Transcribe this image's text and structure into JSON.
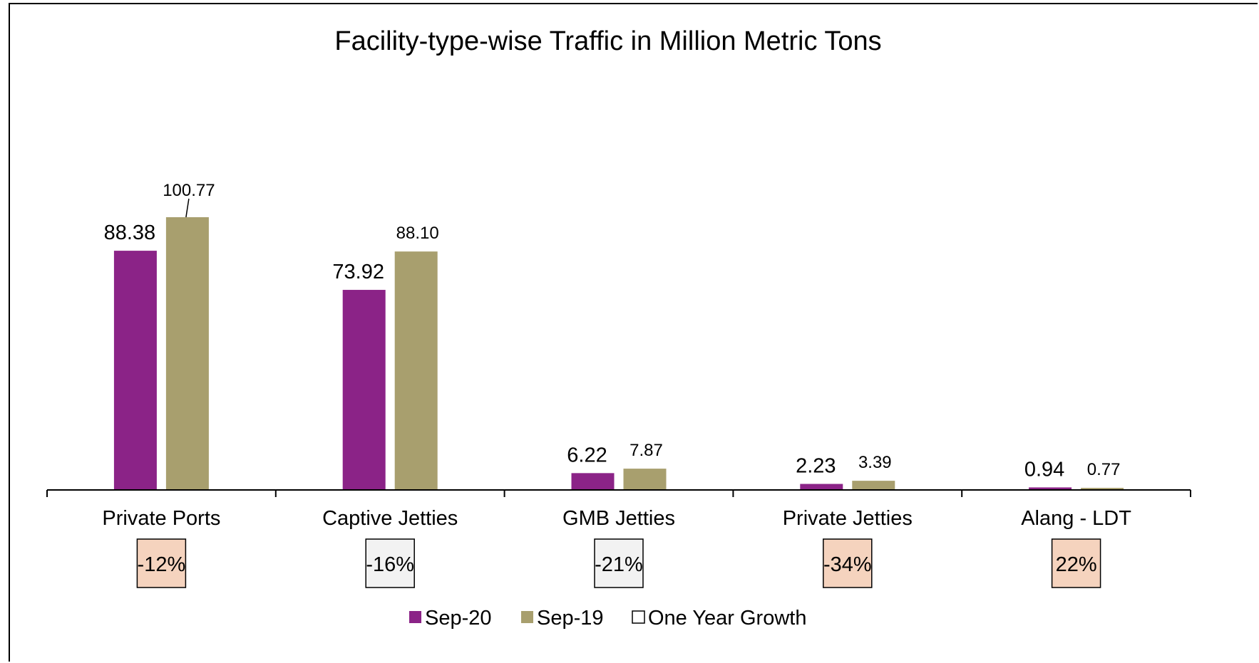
{
  "chart_data": {
    "type": "bar",
    "title": "Facility-type-wise Traffic in Million Metric Tons",
    "categories": [
      "Private Ports",
      "Captive Jetties",
      "GMB Jetties",
      "Private Jetties",
      "Alang - LDT"
    ],
    "series": [
      {
        "name": "Sep-20",
        "color": "#8B2387",
        "values": [
          88.38,
          73.92,
          6.22,
          2.23,
          0.94
        ],
        "labels": [
          "88.38",
          "73.92",
          "6.22",
          "2.23",
          "0.94"
        ]
      },
      {
        "name": "Sep-19",
        "color": "#A89F6E",
        "values": [
          100.77,
          88.1,
          7.87,
          3.39,
          0.77
        ],
        "labels": [
          "100.77",
          "88.10",
          "7.87",
          "3.39",
          "0.77"
        ]
      }
    ],
    "growth": {
      "name": "One Year Growth",
      "labels": [
        "-12%",
        "-16%",
        "-21%",
        "-34%",
        "22%"
      ],
      "colors": [
        "#F5D3BE",
        "#F2F2F2",
        "#F2F2F2",
        "#F5D3BE",
        "#F5D3BE"
      ]
    },
    "ylim": [
      0,
      100.77
    ],
    "grid": false,
    "legend_position": "bottom"
  }
}
